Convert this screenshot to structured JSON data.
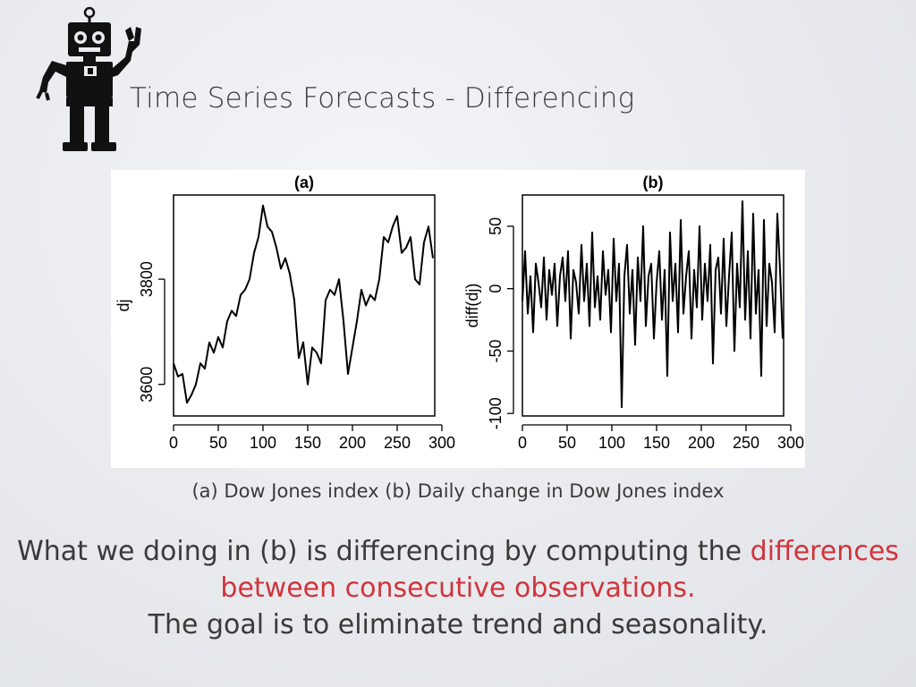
{
  "slide": {
    "title": "Time Series Forecasts - Differencing",
    "caption": "(a) Dow Jones index (b) Daily change in Dow Jones index",
    "body_line1_plain": "What we doing in (b) is differencing by computing the ",
    "body_line1_accent": "differences",
    "body_line2_accent": "between consecutive observations.",
    "body_line3": "The goal is to eliminate trend and seasonality.",
    "accent_color": "#d0343c",
    "logo_icon": "robot-icon"
  },
  "chart_data": [
    {
      "type": "line",
      "title": "(a)",
      "xlabel": "",
      "ylabel": "dj",
      "xlim": [
        0,
        292
      ],
      "ylim": [
        3540,
        3960
      ],
      "xticks": [
        0,
        50,
        100,
        150,
        200,
        250,
        300
      ],
      "yticks": [
        3600,
        3800
      ],
      "grid": false,
      "series": [
        {
          "x": [
            0,
            5,
            10,
            15,
            20,
            25,
            30,
            35,
            40,
            45,
            50,
            55,
            60,
            65,
            70,
            75,
            80,
            85,
            90,
            95,
            100,
            105,
            110,
            115,
            120,
            125,
            130,
            135,
            140,
            145,
            150,
            155,
            160,
            165,
            170,
            175,
            180,
            185,
            190,
            195,
            200,
            205,
            210,
            215,
            220,
            225,
            230,
            235,
            240,
            245,
            250,
            255,
            260,
            265,
            270,
            275,
            280,
            285,
            290
          ],
          "values": [
            3640,
            3615,
            3620,
            3565,
            3580,
            3600,
            3640,
            3630,
            3680,
            3660,
            3690,
            3670,
            3720,
            3740,
            3730,
            3770,
            3780,
            3800,
            3850,
            3880,
            3940,
            3900,
            3890,
            3860,
            3820,
            3840,
            3810,
            3760,
            3650,
            3680,
            3600,
            3670,
            3660,
            3640,
            3760,
            3780,
            3770,
            3800,
            3720,
            3620,
            3670,
            3720,
            3780,
            3750,
            3770,
            3760,
            3800,
            3880,
            3870,
            3900,
            3920,
            3850,
            3860,
            3880,
            3800,
            3790,
            3870,
            3900,
            3840
          ]
        }
      ]
    },
    {
      "type": "line",
      "title": "(b)",
      "xlabel": "",
      "ylabel": "diff(dj)",
      "xlim": [
        0,
        292
      ],
      "ylim": [
        -102,
        75
      ],
      "xticks": [
        0,
        50,
        100,
        150,
        200,
        250,
        300
      ],
      "yticks": [
        -100,
        -50,
        0,
        50
      ],
      "grid": false,
      "series": [
        {
          "x": [
            0,
            3,
            6,
            9,
            12,
            15,
            18,
            21,
            24,
            27,
            30,
            33,
            36,
            39,
            42,
            45,
            48,
            51,
            54,
            57,
            60,
            63,
            66,
            69,
            72,
            75,
            78,
            81,
            84,
            87,
            90,
            93,
            96,
            99,
            102,
            105,
            108,
            111,
            114,
            117,
            120,
            123,
            126,
            129,
            132,
            135,
            138,
            141,
            144,
            147,
            150,
            153,
            156,
            159,
            162,
            165,
            168,
            171,
            174,
            177,
            180,
            183,
            186,
            189,
            192,
            195,
            198,
            201,
            204,
            207,
            210,
            213,
            216,
            219,
            222,
            225,
            228,
            231,
            234,
            237,
            240,
            243,
            246,
            249,
            252,
            255,
            258,
            261,
            264,
            267,
            270,
            273,
            276,
            279,
            282,
            285,
            288,
            291
          ],
          "values": [
            -10,
            30,
            -20,
            10,
            -35,
            20,
            5,
            -15,
            25,
            -25,
            15,
            -5,
            20,
            -30,
            10,
            25,
            -10,
            30,
            -40,
            15,
            5,
            -20,
            35,
            -10,
            20,
            -30,
            45,
            -15,
            10,
            -25,
            30,
            -5,
            15,
            -35,
            40,
            -10,
            20,
            -95,
            10,
            35,
            -20,
            15,
            -45,
            25,
            -10,
            50,
            -30,
            10,
            20,
            -40,
            5,
            30,
            -25,
            15,
            -70,
            45,
            -10,
            20,
            -35,
            55,
            -20,
            10,
            30,
            -40,
            15,
            -15,
            50,
            -25,
            20,
            -10,
            35,
            -60,
            15,
            25,
            -20,
            40,
            -30,
            10,
            45,
            -50,
            20,
            -15,
            70,
            -25,
            30,
            -40,
            60,
            -20,
            15,
            -70,
            55,
            -30,
            20,
            5,
            -35,
            60,
            15,
            -40
          ]
        }
      ]
    }
  ]
}
